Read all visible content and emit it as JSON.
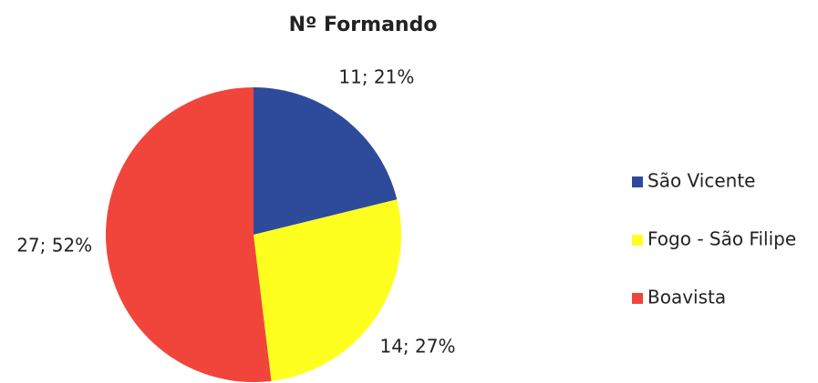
{
  "chart_data": {
    "type": "pie",
    "title": "Nº Formando",
    "categories": [
      "São Vicente",
      "Fogo - São Filipe",
      "Boavista"
    ],
    "values": [
      11,
      14,
      27
    ],
    "value_labels": [
      "11; 21%",
      "14; 27%",
      "27; 52%"
    ],
    "colors": [
      "#2e4b9b",
      "#ffff1f",
      "#f1453b"
    ],
    "legend": "right"
  }
}
